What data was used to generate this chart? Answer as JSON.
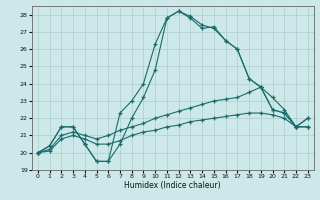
{
  "xlabel": "Humidex (Indice chaleur)",
  "xlim": [
    -0.5,
    23.5
  ],
  "ylim": [
    19,
    28.5
  ],
  "yticks": [
    19,
    20,
    21,
    22,
    23,
    24,
    25,
    26,
    27,
    28
  ],
  "xticks": [
    0,
    1,
    2,
    3,
    4,
    5,
    6,
    7,
    8,
    9,
    10,
    11,
    12,
    13,
    14,
    15,
    16,
    17,
    18,
    19,
    20,
    21,
    22,
    23
  ],
  "background_color": "#cde8e8",
  "grid_color": "#b0cccc",
  "line_color": "#1a6b6b",
  "line1_x": [
    0,
    1,
    2,
    3,
    4,
    5,
    6,
    7,
    8,
    9,
    10,
    11,
    12,
    13,
    14,
    15,
    16,
    17,
    18,
    19,
    20,
    21,
    22,
    23
  ],
  "line1_y": [
    20.0,
    20.4,
    21.5,
    21.5,
    20.5,
    19.5,
    19.5,
    20.5,
    22.0,
    23.2,
    24.8,
    27.8,
    28.2,
    27.9,
    27.4,
    27.2,
    26.5,
    26.0,
    24.3,
    23.8,
    22.5,
    22.3,
    21.5,
    22.0
  ],
  "line2_x": [
    0,
    1,
    2,
    3,
    4,
    5,
    6,
    7,
    8,
    9,
    10,
    11,
    12,
    13,
    14,
    15,
    16,
    17,
    18,
    19,
    20,
    21,
    22,
    23
  ],
  "line2_y": [
    20.0,
    20.4,
    21.5,
    21.5,
    20.5,
    19.5,
    19.5,
    22.3,
    23.0,
    24.0,
    26.3,
    27.8,
    28.2,
    27.8,
    27.2,
    27.3,
    26.5,
    26.0,
    24.3,
    23.8,
    22.5,
    22.3,
    21.5,
    22.0
  ],
  "line3_x": [
    0,
    1,
    2,
    3,
    4,
    5,
    6,
    7,
    8,
    9,
    10,
    11,
    12,
    13,
    14,
    15,
    16,
    17,
    18,
    19,
    20,
    21,
    22,
    23
  ],
  "line3_y": [
    20.0,
    20.2,
    21.0,
    21.2,
    21.0,
    20.8,
    21.0,
    21.3,
    21.5,
    21.7,
    22.0,
    22.2,
    22.4,
    22.6,
    22.8,
    23.0,
    23.1,
    23.2,
    23.5,
    23.8,
    23.2,
    22.5,
    21.5,
    21.5
  ],
  "line4_x": [
    0,
    1,
    2,
    3,
    4,
    5,
    6,
    7,
    8,
    9,
    10,
    11,
    12,
    13,
    14,
    15,
    16,
    17,
    18,
    19,
    20,
    21,
    22,
    23
  ],
  "line4_y": [
    20.0,
    20.1,
    20.8,
    21.0,
    20.8,
    20.5,
    20.5,
    20.7,
    21.0,
    21.2,
    21.3,
    21.5,
    21.6,
    21.8,
    21.9,
    22.0,
    22.1,
    22.2,
    22.3,
    22.3,
    22.2,
    22.0,
    21.5,
    21.5
  ]
}
